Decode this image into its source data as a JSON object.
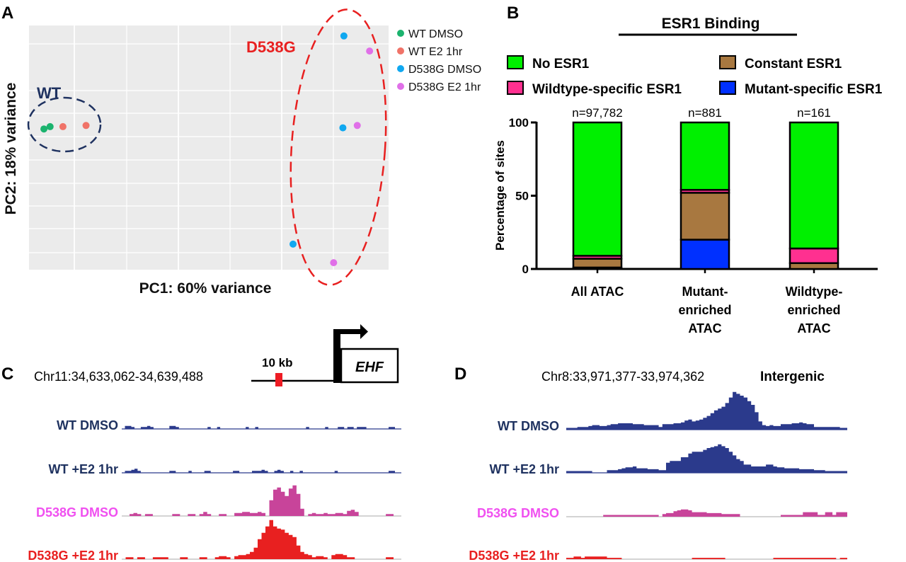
{
  "panels": {
    "A": "A",
    "B": "B",
    "C": "C",
    "D": "D"
  },
  "colors": {
    "wt_navy": "#1f3260",
    "track_blue": "#2b3a8c",
    "d538g_dmso_label": "#f050f0",
    "d538g_dmso_track": "#c8449a",
    "d538g_e2": "#e82020",
    "pca_bg": "#ebebeb",
    "wt_dmso_pt": "#1bb36e",
    "wt_e2_pt": "#f07368",
    "d538g_dmso_pt": "#10a8f0",
    "d538g_e2_pt": "#e070e8",
    "no_esr1": "#00f000",
    "constant_esr1": "#a87840",
    "wildtype_specific": "#ff3090",
    "mutant_specific": "#0030ff"
  },
  "chart_data": [
    {
      "type": "scatter",
      "panel": "A",
      "title": "",
      "xlabel": "PC1: 60% variance",
      "ylabel": "PC2: 18% variance",
      "xlim": [
        0,
        7
      ],
      "ylim": [
        0,
        10.5
      ],
      "grid": true,
      "legend_position": "right",
      "legend": [
        "WT DMSO",
        "WT E2 1hr",
        "D538G DMSO",
        "D538G E2 1hr"
      ],
      "series": [
        {
          "name": "WT DMSO",
          "points": [
            [
              0.29,
              6.05
            ],
            [
              0.41,
              6.15
            ]
          ]
        },
        {
          "name": "WT E2 1hr",
          "points": [
            [
              0.66,
              6.15
            ],
            [
              1.11,
              6.2
            ]
          ]
        },
        {
          "name": "D538G DMSO",
          "points": [
            [
              6.13,
              10.05
            ],
            [
              6.11,
              6.1
            ],
            [
              5.14,
              1.1
            ]
          ]
        },
        {
          "name": "D538G E2 1hr",
          "points": [
            [
              6.63,
              9.4
            ],
            [
              6.39,
              6.2
            ],
            [
              5.93,
              0.3
            ]
          ]
        }
      ],
      "annotations": [
        {
          "text": "WT",
          "group": "WT"
        },
        {
          "text": "D538G",
          "group": "D538G"
        }
      ]
    },
    {
      "type": "bar",
      "stacked": true,
      "panel": "B",
      "title": "ESR1 Binding",
      "xlabel": "",
      "ylabel": "Percentage of sites",
      "ylim": [
        0,
        100
      ],
      "yticks": [
        "0",
        "50",
        "100"
      ],
      "legend_position": "top",
      "categories": [
        [
          "All ATAC"
        ],
        [
          "Mutant-",
          "enriched",
          "ATAC"
        ],
        [
          "Wildtype-",
          "enriched",
          "ATAC"
        ]
      ],
      "n_labels": [
        "n=97,782",
        "n=881",
        "n=161"
      ],
      "series": [
        {
          "name": "Mutant-specific ESR1",
          "color_key": "mutant_specific",
          "values": [
            1,
            20,
            0
          ]
        },
        {
          "name": "Constant ESR1",
          "color_key": "constant_esr1",
          "values": [
            6,
            32,
            4
          ]
        },
        {
          "name": "Wildtype-specific ESR1",
          "color_key": "wildtype_specific",
          "values": [
            2,
            2,
            10
          ]
        },
        {
          "name": "No ESR1",
          "color_key": "no_esr1",
          "values": [
            91,
            46,
            86
          ]
        }
      ],
      "legend": [
        {
          "name": "No ESR1",
          "color_key": "no_esr1"
        },
        {
          "name": "Constant ESR1",
          "color_key": "constant_esr1"
        },
        {
          "name": "Wildtype-specific ESR1",
          "color_key": "wildtype_specific"
        },
        {
          "name": "Mutant-specific ESR1",
          "color_key": "mutant_specific"
        }
      ]
    },
    {
      "type": "area",
      "panel": "C",
      "region": "Chr11:34,633,062-34,639,488",
      "scale_label": "10 kb",
      "gene": "EHF",
      "tracks": [
        {
          "name": "WT DMSO",
          "label_color_key": "wt_navy",
          "fill_color_key": "track_blue",
          "values": [
            0,
            2,
            2,
            1,
            0,
            0,
            1,
            1,
            2,
            1,
            0,
            0,
            0,
            0,
            0,
            2,
            2,
            1,
            0,
            0,
            0,
            0,
            0,
            0,
            0,
            0,
            0,
            1,
            0,
            0,
            1,
            0,
            0,
            0,
            0,
            0,
            0,
            0,
            0,
            1,
            0,
            0,
            1,
            0,
            0,
            0,
            0,
            0,
            0,
            0,
            0,
            0,
            0,
            0,
            0,
            0,
            0,
            0,
            1,
            0,
            0,
            0,
            0,
            0,
            1,
            0,
            0,
            0,
            1,
            1,
            0,
            1,
            1,
            0,
            1,
            1,
            1,
            0,
            0,
            0,
            0,
            0,
            0,
            0,
            1,
            1,
            0,
            0
          ]
        },
        {
          "name": "WT +E2 1hr",
          "label_color_key": "wt_navy",
          "fill_color_key": "track_blue",
          "values": [
            0,
            1,
            1,
            2,
            3,
            1,
            0,
            0,
            0,
            0,
            0,
            0,
            0,
            0,
            0,
            1,
            1,
            0,
            0,
            0,
            0,
            1,
            0,
            0,
            0,
            0,
            1,
            1,
            0,
            0,
            0,
            0,
            0,
            0,
            0,
            1,
            1,
            0,
            0,
            0,
            0,
            1,
            1,
            1,
            2,
            1,
            0,
            0,
            1,
            2,
            1,
            0,
            0,
            1,
            0,
            0,
            1,
            0,
            0,
            0,
            0,
            0,
            0,
            0,
            0,
            0,
            0,
            1,
            0,
            0,
            0,
            0,
            0,
            0,
            0,
            0,
            0,
            0,
            0,
            0,
            0,
            0,
            0,
            0,
            1,
            1,
            0,
            0
          ]
        },
        {
          "name": "D538G DMSO",
          "label_color_key": "d538g_dmso_label",
          "fill_color_key": "d538g_dmso_track",
          "values": [
            0,
            0,
            1,
            2,
            1,
            0,
            1,
            1,
            0,
            0,
            0,
            0,
            0,
            1,
            1,
            0,
            0,
            1,
            1,
            0,
            1,
            3,
            1,
            0,
            0,
            1,
            1,
            0,
            0,
            2,
            2,
            3,
            3,
            2,
            2,
            3,
            2,
            0,
            14,
            24,
            26,
            22,
            18,
            25,
            28,
            20,
            6,
            0,
            1,
            2,
            1,
            1,
            2,
            1,
            1,
            2,
            2,
            1,
            4,
            5,
            3,
            0,
            0,
            0,
            0,
            0,
            0,
            0,
            1,
            1,
            0,
            0
          ]
        },
        {
          "name": "D538G +E2 1hr",
          "label_color_key": "d538g_e2",
          "fill_color_key": "d538g_e2",
          "values": [
            0,
            1,
            1,
            0,
            1,
            1,
            0,
            0,
            1,
            1,
            1,
            1,
            0,
            0,
            0,
            1,
            1,
            0,
            0,
            0,
            1,
            1,
            0,
            0,
            1,
            2,
            2,
            1,
            0,
            2,
            3,
            3,
            4,
            6,
            10,
            18,
            24,
            30,
            36,
            30,
            28,
            27,
            24,
            22,
            20,
            12,
            6,
            4,
            3,
            1,
            2,
            2,
            1,
            0,
            3,
            4,
            4,
            3,
            1,
            1,
            0,
            0,
            0,
            0,
            0,
            0,
            0,
            0,
            1,
            1,
            0,
            0
          ]
        }
      ]
    },
    {
      "type": "area",
      "panel": "D",
      "region": "Chr8:33,971,377-33,974,362",
      "annotation": "Intergenic",
      "tracks": [
        {
          "name": "WT DMSO",
          "label_color_key": "wt_navy",
          "fill_color_key": "track_blue",
          "values": [
            1,
            1,
            1,
            2,
            2,
            2,
            3,
            4,
            4,
            3,
            3,
            4,
            5,
            5,
            6,
            6,
            6,
            6,
            5,
            5,
            5,
            4,
            4,
            4,
            4,
            2,
            5,
            5,
            5,
            6,
            6,
            7,
            9,
            10,
            8,
            9,
            10,
            12,
            14,
            17,
            20,
            22,
            24,
            28,
            34,
            40,
            38,
            36,
            34,
            30,
            26,
            18,
            8,
            4,
            3,
            4,
            3,
            3,
            5,
            5,
            5,
            6,
            6,
            7,
            6,
            5,
            5,
            2,
            2,
            2,
            2,
            2,
            2,
            2,
            1,
            1
          ]
        },
        {
          "name": "WT +E2 1hr",
          "label_color_key": "wt_navy",
          "fill_color_key": "track_blue",
          "values": [
            1,
            1,
            1,
            1,
            1,
            1,
            1,
            0,
            0,
            0,
            0,
            2,
            2,
            2,
            3,
            4,
            5,
            5,
            6,
            4,
            4,
            4,
            3,
            3,
            3,
            2,
            2,
            10,
            12,
            12,
            12,
            16,
            16,
            20,
            22,
            22,
            22,
            24,
            26,
            27,
            28,
            30,
            28,
            26,
            22,
            18,
            14,
            12,
            8,
            8,
            6,
            6,
            6,
            6,
            8,
            8,
            6,
            5,
            5,
            4,
            4,
            4,
            4,
            3,
            3,
            3,
            3,
            2,
            2,
            2,
            1,
            1,
            1,
            1,
            1,
            1
          ]
        },
        {
          "name": "D538G DMSO",
          "label_color_key": "d538g_dmso_label",
          "fill_color_key": "d538g_dmso_track",
          "values": [
            0,
            0,
            0,
            0,
            0,
            0,
            0,
            0,
            0,
            0,
            1,
            1,
            1,
            1,
            1,
            1,
            1,
            1,
            1,
            1,
            1,
            1,
            1,
            1,
            1,
            0,
            2,
            3,
            3,
            5,
            6,
            7,
            7,
            6,
            4,
            4,
            4,
            4,
            3,
            3,
            3,
            3,
            2,
            2,
            2,
            2,
            2,
            0,
            0,
            0,
            0,
            0,
            0,
            0,
            0,
            0,
            0,
            0,
            1,
            1,
            1,
            1,
            1,
            1,
            4,
            4,
            4,
            4,
            1,
            1,
            4,
            4,
            1,
            4,
            4,
            4
          ]
        },
        {
          "name": "D538G +E2 1hr",
          "label_color_key": "d538g_e2",
          "fill_color_key": "d538g_e2",
          "values": [
            0.5,
            0.5,
            2,
            2,
            0.5,
            2,
            2,
            2,
            2,
            2,
            2,
            0.5,
            0.5,
            0.5,
            0.5,
            0,
            0,
            0,
            0,
            0,
            0,
            0,
            0,
            0,
            0,
            0,
            0,
            0,
            0,
            0,
            0,
            0,
            0,
            0,
            0.5,
            0.5,
            0.5,
            0.5,
            0.5,
            0.5,
            0.5,
            0.5,
            0.5,
            0,
            0,
            0,
            0,
            0,
            0,
            0,
            0,
            0,
            0,
            0,
            0,
            0,
            0.5,
            0.5,
            0.5,
            0.5,
            0.5,
            0.5,
            0.5,
            0.5,
            0.5,
            0.5,
            0.5,
            0.5,
            0.5,
            0.5,
            0.5,
            0.5,
            0.5,
            0,
            0.5,
            0.5
          ]
        }
      ]
    }
  ]
}
